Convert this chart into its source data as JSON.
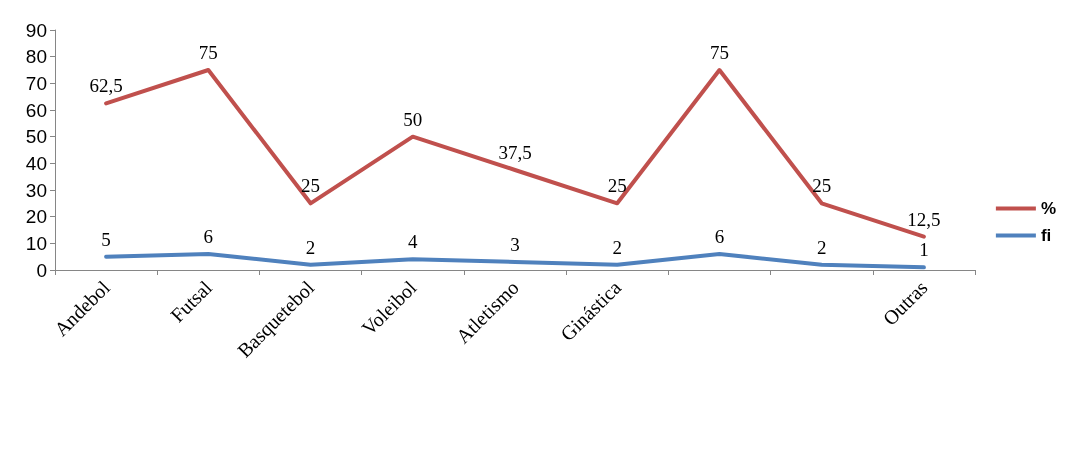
{
  "chart_data": {
    "type": "line",
    "categories": [
      "Andebol",
      "Futsal",
      "Basquetebol",
      "Voleibol",
      "Atletismo",
      "Ginástica",
      null,
      null,
      "Outras"
    ],
    "series": [
      {
        "name": "%",
        "color": "#c0504d",
        "values": [
          62.5,
          75,
          25,
          50,
          37.5,
          25,
          75,
          25,
          12.5
        ],
        "value_labels": [
          "62,5",
          "75",
          "25",
          "50",
          "37,5",
          "25",
          "75",
          "25",
          "12,5"
        ]
      },
      {
        "name": "fi",
        "color": "#4f81bd",
        "values": [
          5,
          6,
          2,
          4,
          3,
          2,
          6,
          2,
          1
        ],
        "value_labels": [
          "5",
          "6",
          "2",
          "4",
          "3",
          "2",
          "6",
          "2",
          "1"
        ]
      }
    ],
    "ylim": [
      0,
      90
    ],
    "yticks": [
      0,
      10,
      20,
      30,
      40,
      50,
      60,
      70,
      80,
      90
    ],
    "grid": false,
    "legend": "right",
    "marker": "none",
    "line_style": "solid"
  }
}
